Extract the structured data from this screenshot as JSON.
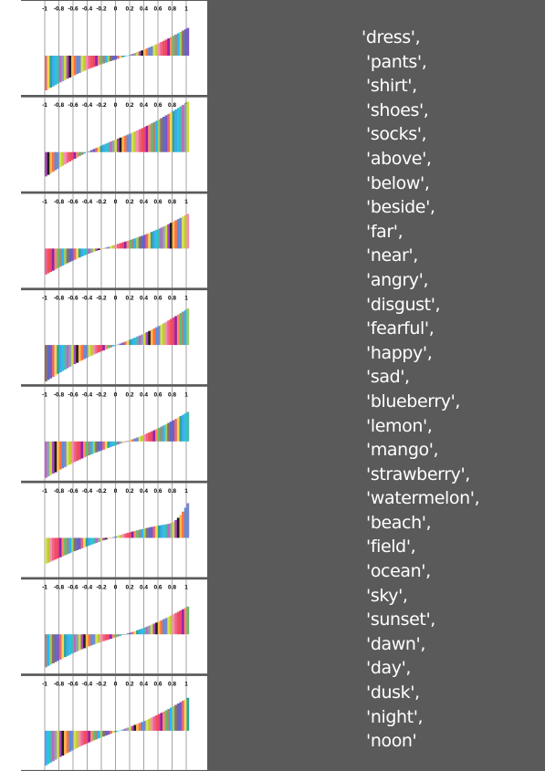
{
  "colors": {
    "background": "#595a59",
    "panel": "#ffffff",
    "gridline": "#7f7f7f",
    "text_words": "#ffffff",
    "tick_text": "#000000"
  },
  "words": [
    "'dress',",
    "'pants',",
    "'shirt',",
    "'shoes',",
    "'socks',",
    "'above',",
    "'below',",
    "'beside',",
    "'far',",
    "'near',",
    "'angry',",
    "'disgust',",
    "'fearful',",
    "'happy',",
    "'sad',",
    "'blueberry',",
    "'lemon',",
    "'mango',",
    "'strawberry',",
    "'watermelon',",
    "'beach',",
    "'field',",
    "'ocean',",
    "'sky',",
    "'sunset',",
    "'dawn',",
    "'day',",
    "'dusk',",
    "'night',",
    "'noon'"
  ],
  "chart_data": [
    {
      "type": "bar",
      "xlim": [
        -1,
        1
      ],
      "tick_labels": [
        "-1",
        "-0.8",
        "-0.6",
        "-0.4",
        "-0.2",
        "0",
        "0.2",
        "0.4",
        "0.6",
        "0.8",
        "1"
      ],
      "grid": true,
      "sorted_bars": {
        "count": 60,
        "min": -0.4,
        "max": 0.32,
        "shape": "roughly linear"
      }
    },
    {
      "type": "bar",
      "xlim": [
        -1,
        1
      ],
      "tick_labels": [
        "-1",
        "-0.8",
        "-0.6",
        "-0.4",
        "-0.2",
        "0",
        "0.2",
        "0.4",
        "0.6",
        "0.8",
        "1"
      ],
      "grid": true,
      "sorted_bars": {
        "count": 60,
        "min": -0.28,
        "max": 0.58,
        "shape": "roughly linear"
      }
    },
    {
      "type": "bar",
      "xlim": [
        -1,
        1
      ],
      "tick_labels": [
        "-1",
        "-0.8",
        "-0.6",
        "-0.4",
        "-0.2",
        "0",
        "0.2",
        "0.4",
        "0.6",
        "0.8",
        "1"
      ],
      "grid": true,
      "sorted_bars": {
        "count": 60,
        "min": -0.3,
        "max": 0.4,
        "shape": "roughly linear"
      }
    },
    {
      "type": "bar",
      "xlim": [
        -1,
        1
      ],
      "tick_labels": [
        "-1",
        "-0.8",
        "-0.6",
        "-0.4",
        "-0.2",
        "0",
        "0.2",
        "0.4",
        "0.6",
        "0.8",
        "1"
      ],
      "grid": true,
      "sorted_bars": {
        "count": 60,
        "min": -0.42,
        "max": 0.42,
        "shape": "roughly linear"
      }
    },
    {
      "type": "bar",
      "xlim": [
        -1,
        1
      ],
      "tick_labels": [
        "-1",
        "-0.8",
        "-0.6",
        "-0.4",
        "-0.2",
        "0",
        "0.2",
        "0.4",
        "0.6",
        "0.8",
        "1"
      ],
      "grid": true,
      "sorted_bars": {
        "count": 60,
        "min": -0.42,
        "max": 0.34,
        "shape": "roughly linear"
      }
    },
    {
      "type": "bar",
      "xlim": [
        -1,
        1
      ],
      "tick_labels": [
        "-1",
        "-0.8",
        "-0.6",
        "-0.4",
        "-0.2",
        "0",
        "0.2",
        "0.4",
        "0.6",
        "0.8",
        "1"
      ],
      "grid": true,
      "sorted_bars": {
        "count": 60,
        "min": -0.3,
        "max": 0.4,
        "shape": "sharp upturn at the right end"
      }
    },
    {
      "type": "bar",
      "xlim": [
        -1,
        1
      ],
      "tick_labels": [
        "-1",
        "-0.8",
        "-0.6",
        "-0.4",
        "-0.2",
        "0",
        "0.2",
        "0.4",
        "0.6",
        "0.8",
        "1"
      ],
      "grid": true,
      "sorted_bars": {
        "count": 60,
        "min": -0.38,
        "max": 0.32,
        "shape": "roughly linear"
      }
    },
    {
      "type": "bar",
      "xlim": [
        -1,
        1
      ],
      "tick_labels": [
        "-1",
        "-0.8",
        "-0.6",
        "-0.4",
        "-0.2",
        "0",
        "0.2",
        "0.4",
        "0.6",
        "0.8",
        "1"
      ],
      "grid": true,
      "sorted_bars": {
        "count": 60,
        "min": -0.4,
        "max": 0.38,
        "shape": "roughly linear"
      }
    }
  ]
}
